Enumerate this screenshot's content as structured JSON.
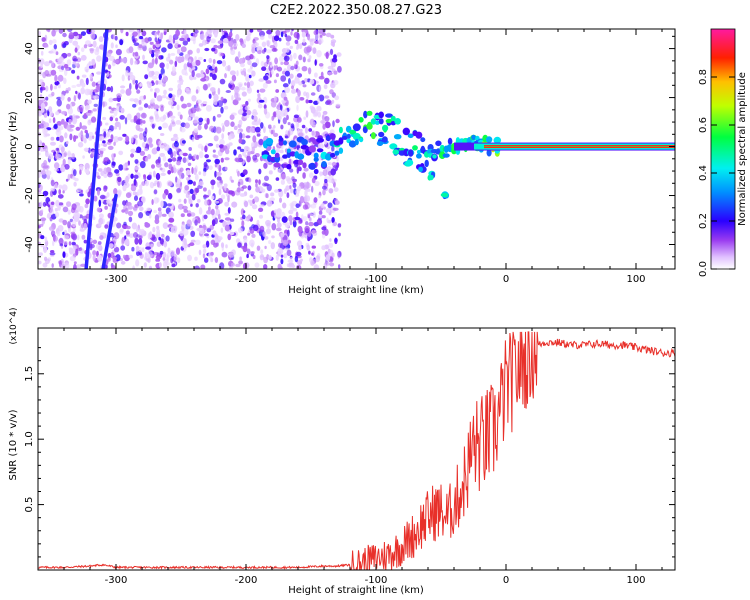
{
  "title": "C2E2.2022.350.08.27.G23",
  "chart_data": [
    {
      "type": "heatmap",
      "xlabel": "Height of straight line (km)",
      "ylabel": "Frequency (Hz)",
      "xlim": [
        -360,
        130
      ],
      "ylim": [
        -50,
        48
      ],
      "xticks": [
        -300,
        -200,
        -100,
        0,
        100
      ],
      "yticks": [
        -40,
        -20,
        0,
        20,
        40
      ],
      "colorbar": {
        "label": "Normalized spectral amplitude",
        "range": [
          0,
          1
        ],
        "ticks": [
          "0.0",
          "0.2",
          "0.4",
          "0.6",
          "0.8"
        ],
        "colors": [
          "#ffffff",
          "#d9a6ff",
          "#8a2be2",
          "#0000ff",
          "#00ffff",
          "#00ff00",
          "#ffff00",
          "#ff8000",
          "#ff0000",
          "#ff1493"
        ]
      },
      "features": {
        "noise_region_x": [
          -360,
          -128
        ],
        "streak_lines": [
          {
            "x": [
              -323,
              -307
            ],
            "y": [
              -50,
              48
            ]
          },
          {
            "x": [
              -310,
              -300
            ],
            "y": [
              -50,
              -20
            ]
          }
        ],
        "signal_track": [
          {
            "x": -185,
            "y": -3,
            "amp": 0.4
          },
          {
            "x": -155,
            "y": -3,
            "amp": 0.3
          },
          {
            "x": -140,
            "y": -2,
            "amp": 0.4
          },
          {
            "x": -130,
            "y": 0,
            "amp": 0.45
          },
          {
            "x": -118,
            "y": 5,
            "amp": 0.5
          },
          {
            "x": -105,
            "y": 9,
            "amp": 0.55
          },
          {
            "x": -90,
            "y": 7,
            "amp": 0.55
          },
          {
            "x": -80,
            "y": 3,
            "amp": 0.5
          },
          {
            "x": -70,
            "y": 0,
            "amp": 0.5
          },
          {
            "x": -55,
            "y": -2,
            "amp": 0.5
          },
          {
            "x": -40,
            "y": 0,
            "amp": 0.55
          },
          {
            "x": -25,
            "y": 1,
            "amp": 0.6
          },
          {
            "x": -10,
            "y": 0,
            "amp": 0.7
          },
          {
            "x": 0,
            "y": 0,
            "amp": 0.8
          },
          {
            "x": 130,
            "y": 0,
            "amp": 0.95
          }
        ],
        "lower_branch": [
          {
            "x": -95,
            "y": 2
          },
          {
            "x": -85,
            "y": -2
          },
          {
            "x": -75,
            "y": -6
          },
          {
            "x": -65,
            "y": -9
          },
          {
            "x": -58,
            "y": -12
          },
          {
            "x": -45,
            "y": -19
          }
        ]
      }
    },
    {
      "type": "line",
      "xlabel": "Height of straight line (km)",
      "ylabel": "SNR (10 * v/v)",
      "y_multiplier": "(x10^4)",
      "xlim": [
        -360,
        130
      ],
      "ylim": [
        0,
        1.85
      ],
      "xticks": [
        -300,
        -200,
        -100,
        0,
        100
      ],
      "yticks": [
        0.5,
        1.0,
        1.5
      ],
      "ytick_labels": [
        "0.5",
        "1.0",
        "1.5"
      ],
      "color": "#e8302a",
      "series": [
        {
          "x": [
            -360,
            -340,
            -320,
            -310,
            -300,
            -280,
            -260,
            -240,
            -220,
            -200,
            -180,
            -160,
            -140,
            -130,
            -120,
            -110,
            -100,
            -90,
            -80,
            -70,
            -65,
            -60,
            -55,
            -50,
            -45,
            -40,
            -35,
            -30,
            -25,
            -20,
            -15,
            -10,
            -5,
            0,
            5,
            10,
            15,
            20,
            25,
            30,
            40,
            50,
            60,
            70,
            80,
            90,
            100,
            110,
            120,
            130
          ],
          "y": [
            0.02,
            0.02,
            0.03,
            0.04,
            0.02,
            0.02,
            0.02,
            0.02,
            0.02,
            0.02,
            0.02,
            0.02,
            0.03,
            0.03,
            0.04,
            0.06,
            0.09,
            0.12,
            0.18,
            0.28,
            0.35,
            0.4,
            0.45,
            0.45,
            0.4,
            0.5,
            0.6,
            0.75,
            0.95,
            0.95,
            1.0,
            1.05,
            1.2,
            1.4,
            1.45,
            1.55,
            1.62,
            1.68,
            1.72,
            1.74,
            1.74,
            1.72,
            1.72,
            1.73,
            1.72,
            1.72,
            1.7,
            1.68,
            1.66,
            1.66
          ]
        }
      ]
    }
  ]
}
